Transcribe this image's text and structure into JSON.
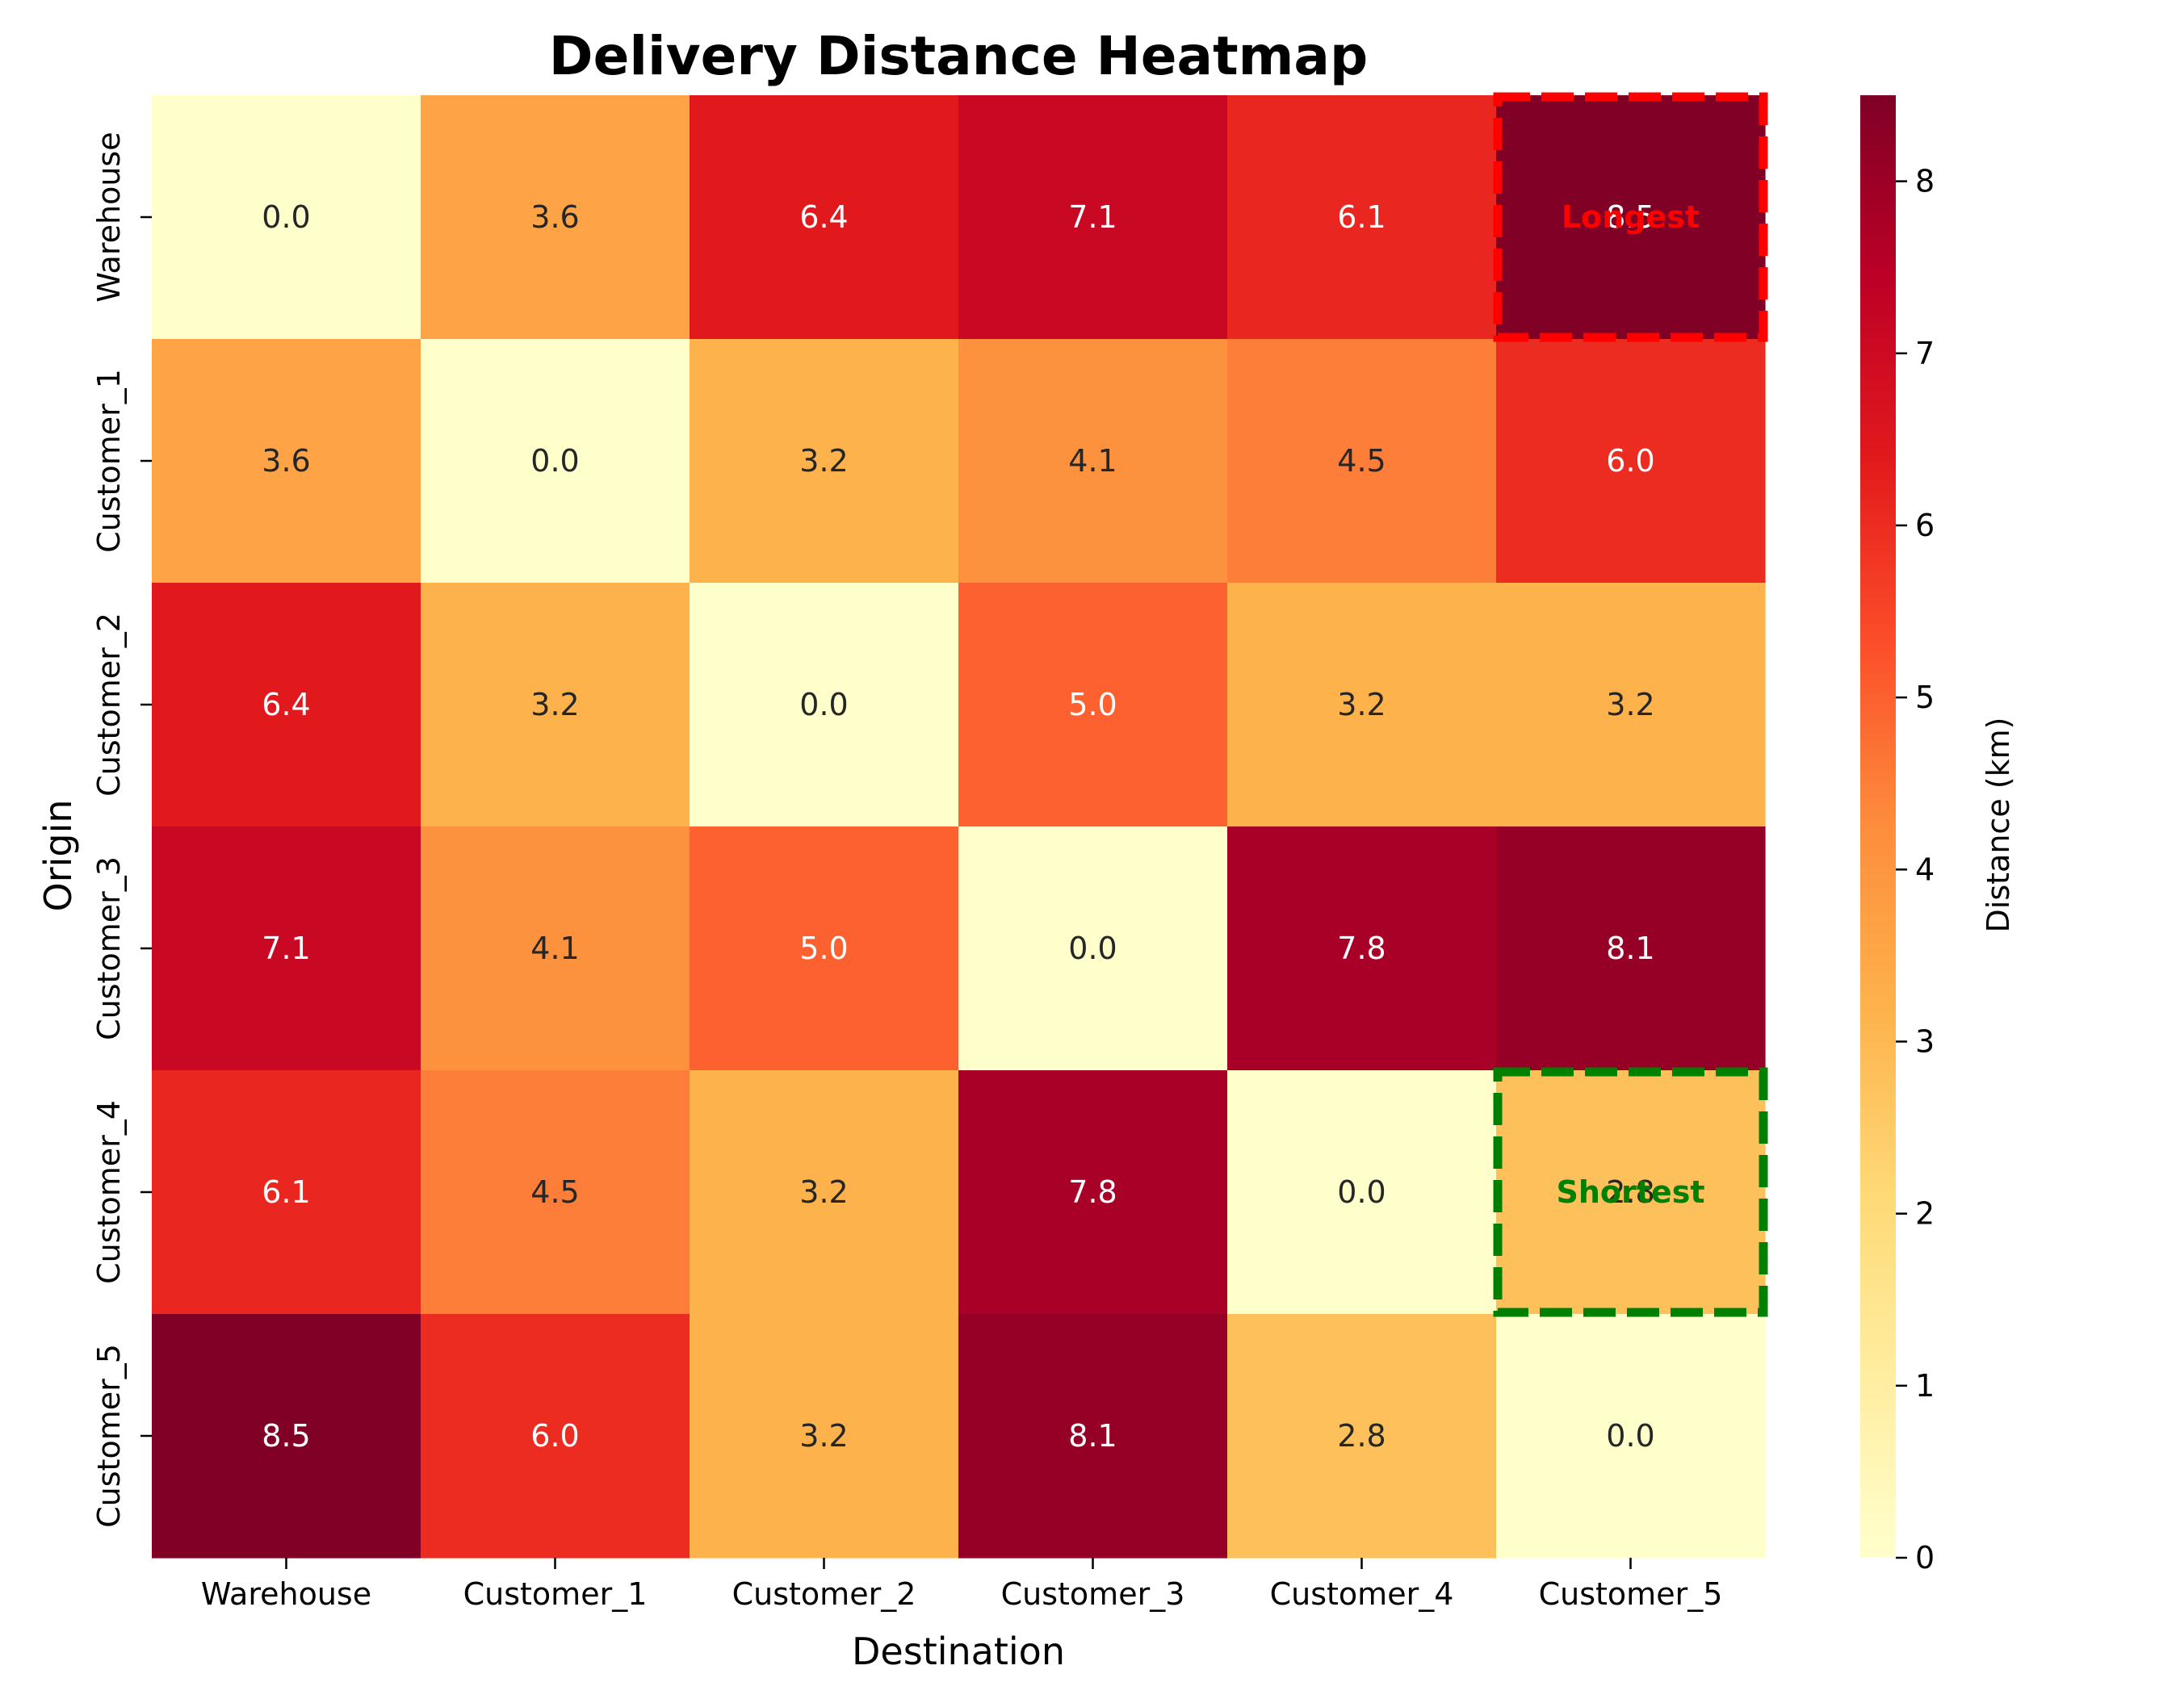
{
  "chart_data": {
    "type": "heatmap",
    "title": "Delivery Distance Heatmap",
    "xlabel": "Destination",
    "ylabel": "Origin",
    "x_categories": [
      "Warehouse",
      "Customer_1",
      "Customer_2",
      "Customer_3",
      "Customer_4",
      "Customer_5"
    ],
    "y_categories": [
      "Warehouse",
      "Customer_1",
      "Customer_2",
      "Customer_3",
      "Customer_4",
      "Customer_5"
    ],
    "values": [
      [
        0.0,
        3.6,
        6.4,
        7.1,
        6.1,
        8.5
      ],
      [
        3.6,
        0.0,
        3.2,
        4.1,
        4.5,
        6.0
      ],
      [
        6.4,
        3.2,
        0.0,
        5.0,
        3.2,
        3.2
      ],
      [
        7.1,
        4.1,
        5.0,
        0.0,
        7.8,
        8.1
      ],
      [
        6.1,
        4.5,
        3.2,
        7.8,
        0.0,
        2.8
      ],
      [
        8.5,
        6.0,
        3.2,
        8.1,
        2.8,
        0.0
      ]
    ],
    "colormap": "YlOrRd",
    "colorbar": {
      "label": "Distance (km)",
      "range": [
        0,
        8.5
      ],
      "ticks": [
        "0",
        "1",
        "2",
        "3",
        "4",
        "5",
        "6",
        "7",
        "8"
      ]
    },
    "highlights": [
      {
        "row": 0,
        "col": 5,
        "text": "Longest",
        "color": "#ff0000"
      },
      {
        "row": 4,
        "col": 5,
        "text": "Shortest",
        "color": "#008000"
      }
    ]
  }
}
